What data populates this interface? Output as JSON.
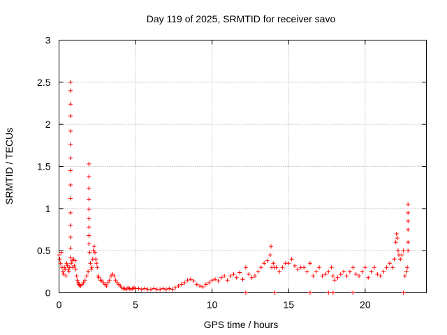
{
  "chart_data": {
    "type": "scatter",
    "title": "Day 119 of 2025, SRMTID for receiver savo",
    "xlabel": "GPS time / hours",
    "ylabel": "SRMTID / TECUs",
    "xlim": [
      0,
      24
    ],
    "ylim": [
      0,
      3
    ],
    "xticks": [
      0,
      5,
      10,
      15,
      20
    ],
    "yticks": [
      0,
      0.5,
      1,
      1.5,
      2,
      2.5,
      3
    ],
    "ytick_labels": [
      "0",
      "0.5",
      "1",
      "1.5",
      "2",
      "2.5",
      "3"
    ],
    "grid": true,
    "marker": "+",
    "color": "#ff0000",
    "series": [
      {
        "name": "SRMTID",
        "x": [
          0.0,
          0.05,
          0.1,
          0.15,
          0.2,
          0.25,
          0.3,
          0.35,
          0.4,
          0.45,
          0.5,
          0.55,
          0.6,
          0.65,
          0.7,
          0.75,
          0.75,
          0.75,
          0.75,
          0.75,
          0.75,
          0.75,
          0.75,
          0.75,
          0.75,
          0.75,
          0.75,
          0.75,
          0.75,
          0.75,
          0.8,
          0.85,
          0.9,
          0.95,
          1.0,
          1.05,
          1.1,
          1.15,
          1.2,
          1.25,
          1.3,
          1.35,
          1.4,
          1.5,
          1.6,
          1.7,
          1.8,
          1.9,
          1.95,
          1.95,
          1.95,
          1.95,
          1.95,
          1.95,
          1.95,
          1.95,
          1.95,
          2.0,
          2.05,
          2.1,
          2.15,
          2.2,
          2.25,
          2.3,
          2.35,
          2.4,
          2.45,
          2.5,
          2.55,
          2.6,
          2.7,
          2.8,
          2.9,
          3.0,
          3.1,
          3.2,
          3.3,
          3.4,
          3.5,
          3.6,
          3.7,
          3.8,
          3.9,
          4.0,
          4.1,
          4.2,
          4.3,
          4.4,
          4.5,
          4.6,
          4.7,
          4.8,
          4.9,
          5.0,
          5.2,
          5.4,
          5.6,
          5.8,
          6.0,
          6.2,
          6.4,
          6.6,
          6.8,
          7.0,
          7.2,
          7.4,
          7.6,
          7.8,
          8.0,
          8.2,
          8.4,
          8.6,
          8.8,
          9.0,
          9.2,
          9.4,
          9.6,
          9.8,
          10.0,
          10.2,
          10.4,
          10.6,
          10.8,
          11.0,
          11.2,
          11.4,
          11.6,
          11.8,
          12.0,
          12.2,
          12.2,
          12.4,
          12.6,
          12.8,
          13.0,
          13.2,
          13.4,
          13.6,
          13.8,
          13.85,
          13.9,
          14.0,
          14.1,
          14.1,
          14.2,
          14.4,
          14.6,
          14.8,
          15.0,
          15.2,
          15.4,
          15.6,
          15.8,
          16.0,
          16.2,
          16.4,
          16.4,
          16.6,
          16.8,
          17.0,
          17.2,
          17.4,
          17.6,
          17.6,
          17.8,
          17.9,
          17.9,
          18.0,
          18.2,
          18.4,
          18.6,
          18.8,
          19.0,
          19.2,
          19.2,
          19.4,
          19.6,
          19.8,
          20.0,
          20.2,
          20.4,
          20.6,
          20.8,
          21.0,
          21.2,
          21.4,
          21.6,
          21.8,
          21.9,
          22.0,
          22.05,
          22.1,
          22.15,
          22.2,
          22.3,
          22.4,
          22.5,
          22.5,
          22.6,
          22.7,
          22.75,
          22.8,
          22.8,
          22.8,
          22.8,
          22.8,
          22.8
        ],
        "y": [
          0.45,
          0.4,
          0.35,
          0.48,
          0.3,
          0.25,
          0.22,
          0.3,
          0.28,
          0.2,
          0.35,
          0.32,
          0.28,
          0.25,
          0.3,
          2.5,
          2.4,
          2.24,
          2.1,
          1.92,
          1.76,
          1.6,
          1.45,
          1.28,
          1.12,
          0.95,
          0.8,
          0.66,
          0.53,
          0.42,
          0.35,
          0.38,
          0.3,
          0.4,
          0.32,
          0.38,
          0.28,
          0.2,
          0.15,
          0.12,
          0.1,
          0.09,
          0.08,
          0.1,
          0.12,
          0.15,
          0.2,
          0.25,
          1.53,
          1.38,
          1.24,
          1.11,
          0.99,
          0.88,
          0.78,
          0.68,
          0.58,
          0.48,
          0.35,
          0.28,
          0.3,
          0.4,
          0.5,
          0.55,
          0.48,
          0.4,
          0.35,
          0.3,
          0.2,
          0.18,
          0.15,
          0.14,
          0.12,
          0.1,
          0.08,
          0.12,
          0.15,
          0.2,
          0.22,
          0.2,
          0.15,
          0.12,
          0.1,
          0.08,
          0.06,
          0.05,
          0.05,
          0.04,
          0.06,
          0.05,
          0.04,
          0.05,
          0.06,
          0.05,
          0.05,
          0.04,
          0.05,
          0.04,
          0.04,
          0.05,
          0.04,
          0.04,
          0.05,
          0.04,
          0.05,
          0.04,
          0.06,
          0.08,
          0.1,
          0.12,
          0.15,
          0.16,
          0.14,
          0.1,
          0.08,
          0.07,
          0.1,
          0.12,
          0.15,
          0.16,
          0.14,
          0.18,
          0.2,
          0.15,
          0.2,
          0.22,
          0.18,
          0.24,
          0.16,
          0.0,
          0.3,
          0.22,
          0.18,
          0.2,
          0.25,
          0.3,
          0.35,
          0.38,
          0.45,
          0.55,
          0.3,
          0.35,
          0.0,
          0.3,
          0.3,
          0.25,
          0.3,
          0.35,
          0.35,
          0.4,
          0.32,
          0.28,
          0.3,
          0.3,
          0.25,
          0.0,
          0.35,
          0.2,
          0.25,
          0.3,
          0.2,
          0.22,
          0.25,
          0.0,
          0.3,
          0.2,
          0.0,
          0.15,
          0.18,
          0.22,
          0.25,
          0.2,
          0.25,
          0.3,
          0.0,
          0.22,
          0.2,
          0.25,
          0.3,
          0.18,
          0.25,
          0.3,
          0.22,
          0.2,
          0.25,
          0.3,
          0.35,
          0.3,
          0.4,
          0.6,
          0.7,
          0.65,
          0.5,
          0.45,
          0.4,
          0.45,
          0.5,
          0.0,
          0.2,
          0.25,
          0.3,
          1.05,
          0.95,
          0.85,
          0.75,
          0.6,
          0.5
        ]
      }
    ]
  }
}
